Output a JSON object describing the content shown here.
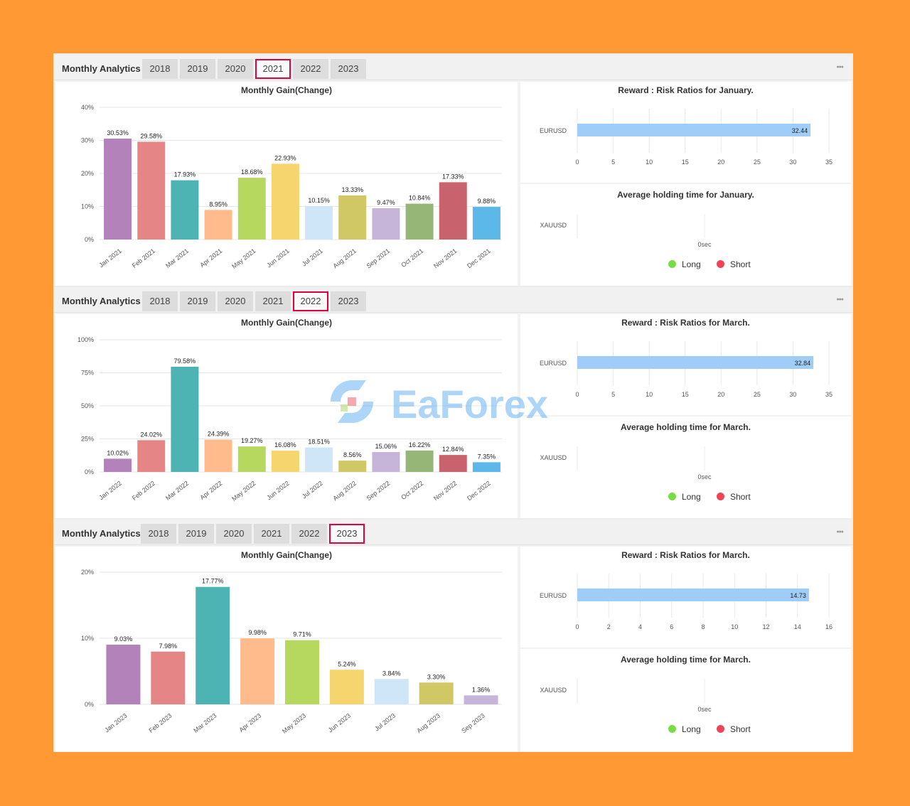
{
  "panels": [
    {
      "title": "Monthly Analytics",
      "tabs": [
        "2018",
        "2019",
        "2020",
        "2021",
        "2022",
        "2023"
      ],
      "selected_tab": "2021",
      "chart_data": {
        "type": "bar",
        "title": "Monthly Gain(Change)",
        "categories": [
          "Jan 2021",
          "Feb 2021",
          "Mar 2021",
          "Apr 2021",
          "May 2021",
          "Jun 2021",
          "Jul 2021",
          "Aug 2021",
          "Sep 2021",
          "Oct 2021",
          "Nov 2021",
          "Dec 2021"
        ],
        "values": [
          30.53,
          29.58,
          17.93,
          8.95,
          18.68,
          22.93,
          10.15,
          13.33,
          9.47,
          10.84,
          17.33,
          9.88
        ],
        "data_labels": [
          "30.53%",
          "29.58%",
          "17.93%",
          "8.95%",
          "18.68%",
          "22.93%",
          "10.15%",
          "13.33%",
          "9.47%",
          "10.84%",
          "17.33%",
          "9.88%"
        ],
        "yticks": [
          "0%",
          "10%",
          "20%",
          "30%",
          "40%"
        ],
        "ylim": [
          0,
          40
        ],
        "grid": true,
        "colors": [
          "#b382ba",
          "#e68585",
          "#4db3b3",
          "#ffbb8c",
          "#b6d85f",
          "#f6d56e",
          "#cfe6f8",
          "#d0c765",
          "#c6b5d9",
          "#95b677",
          "#c8626d",
          "#5bb8e8"
        ]
      },
      "risk": {
        "title": "Reward : Risk Ratios for January.",
        "symbol": "EURUSD",
        "value": 32.44,
        "value_label": "32.44",
        "xticks": [
          "0",
          "5",
          "10",
          "15",
          "20",
          "25",
          "30",
          "35"
        ],
        "xlim": [
          0,
          35
        ],
        "bar_color": "#9fcdf7"
      },
      "holding": {
        "title": "Average holding time for January.",
        "symbol": "XAUUSD",
        "tick": "0sec",
        "legend": [
          {
            "label": "Long",
            "color": "#77dd44"
          },
          {
            "label": "Short",
            "color": "#ee4455"
          }
        ]
      }
    },
    {
      "title": "Monthly Analytics",
      "tabs": [
        "2018",
        "2019",
        "2020",
        "2021",
        "2022",
        "2023"
      ],
      "selected_tab": "2022",
      "chart_data": {
        "type": "bar",
        "title": "Monthly Gain(Change)",
        "categories": [
          "Jan 2022",
          "Feb 2022",
          "Mar 2022",
          "Apr 2022",
          "May 2022",
          "Jun 2022",
          "Jul 2022",
          "Aug 2022",
          "Sep 2022",
          "Oct 2022",
          "Nov 2022",
          "Dec 2022"
        ],
        "values": [
          10.02,
          24.02,
          79.58,
          24.39,
          19.27,
          16.08,
          18.51,
          8.56,
          15.06,
          16.22,
          12.84,
          7.35
        ],
        "data_labels": [
          "10.02%",
          "24.02%",
          "79.58%",
          "24.39%",
          "19.27%",
          "16.08%",
          "18.51%",
          "8.56%",
          "15.06%",
          "16.22%",
          "12.84%",
          "7.35%"
        ],
        "yticks": [
          "0%",
          "25%",
          "50%",
          "75%",
          "100%"
        ],
        "ylim": [
          0,
          100
        ],
        "grid": true,
        "colors": [
          "#b382ba",
          "#e68585",
          "#4db3b3",
          "#ffbb8c",
          "#b6d85f",
          "#f6d56e",
          "#cfe6f8",
          "#d0c765",
          "#c6b5d9",
          "#95b677",
          "#c8626d",
          "#5bb8e8"
        ]
      },
      "risk": {
        "title": "Reward : Risk Ratios for March.",
        "symbol": "EURUSD",
        "value": 32.84,
        "value_label": "32.84",
        "xticks": [
          "0",
          "5",
          "10",
          "15",
          "20",
          "25",
          "30",
          "35"
        ],
        "xlim": [
          0,
          35
        ],
        "bar_color": "#9fcdf7"
      },
      "holding": {
        "title": "Average holding time for March.",
        "symbol": "XAUUSD",
        "tick": "0sec",
        "legend": [
          {
            "label": "Long",
            "color": "#77dd44"
          },
          {
            "label": "Short",
            "color": "#ee4455"
          }
        ]
      }
    },
    {
      "title": "Monthly Analytics",
      "tabs": [
        "2018",
        "2019",
        "2020",
        "2021",
        "2022",
        "2023"
      ],
      "selected_tab": "2023",
      "chart_data": {
        "type": "bar",
        "title": "Monthly Gain(Change)",
        "categories": [
          "Jan 2023",
          "Feb 2023",
          "Mar 2023",
          "Apr 2023",
          "May 2023",
          "Jun 2023",
          "Jul 2023",
          "Aug 2023",
          "Sep 2023"
        ],
        "values": [
          9.03,
          7.98,
          17.77,
          9.98,
          9.71,
          5.24,
          3.84,
          3.3,
          1.36
        ],
        "data_labels": [
          "9.03%",
          "7.98%",
          "17.77%",
          "9.98%",
          "9.71%",
          "5.24%",
          "3.84%",
          "3.30%",
          "1.36%"
        ],
        "yticks": [
          "0%",
          "10%",
          "20%"
        ],
        "ylim": [
          0,
          20
        ],
        "grid": true,
        "colors": [
          "#b382ba",
          "#e68585",
          "#4db3b3",
          "#ffbb8c",
          "#b6d85f",
          "#f6d56e",
          "#cfe6f8",
          "#d0c765",
          "#c6b5d9"
        ]
      },
      "risk": {
        "title": "Reward : Risk Ratios for March.",
        "symbol": "EURUSD",
        "value": 14.73,
        "value_label": "14.73",
        "xticks": [
          "0",
          "2",
          "4",
          "6",
          "8",
          "10",
          "12",
          "14",
          "16"
        ],
        "xlim": [
          0,
          16
        ],
        "bar_color": "#9fcdf7"
      },
      "holding": {
        "title": "Average holding time for March.",
        "symbol": "XAUUSD",
        "tick": "0sec",
        "legend": [
          {
            "label": "Long",
            "color": "#77dd44"
          },
          {
            "label": "Short",
            "color": "#ee4455"
          }
        ]
      }
    }
  ],
  "watermark": {
    "text": "EaForex"
  }
}
